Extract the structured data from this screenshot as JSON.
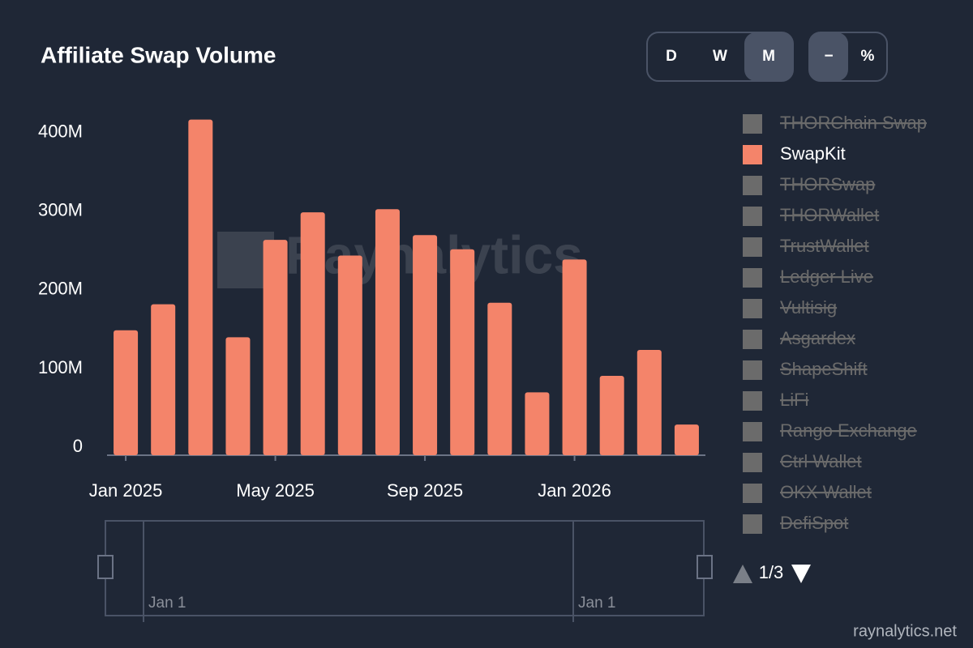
{
  "title": "Affiliate Swap Volume",
  "controls": {
    "periods": [
      "D",
      "W",
      "M"
    ],
    "active_period": 2,
    "modes": [
      "−",
      "%"
    ],
    "active_mode": 0
  },
  "chart_data": {
    "type": "bar",
    "categories": [
      "Jan 2025",
      null,
      null,
      null,
      "May 2025",
      null,
      null,
      null,
      "Sep 2025",
      null,
      null,
      null,
      "Jan 2026",
      null,
      null,
      null
    ],
    "series": [
      {
        "name": "SwapKit",
        "color": "#f4846a",
        "values": [
          159000000,
          192000000,
          427000000,
          150000000,
          274000000,
          309000000,
          254000000,
          313000000,
          280000000,
          262000000,
          194000000,
          80000000,
          249000000,
          101000000,
          134000000,
          39000000
        ]
      }
    ],
    "ylim": [
      0,
      440000000
    ],
    "yticks": [
      {
        "value": 0,
        "label": "0"
      },
      {
        "value": 100000000,
        "label": "100M"
      },
      {
        "value": 200000000,
        "label": "200M"
      },
      {
        "value": 300000000,
        "label": "300M"
      },
      {
        "value": 400000000,
        "label": "400M"
      }
    ],
    "grid": false
  },
  "legend": [
    {
      "name": "THORChain Swap",
      "active": false
    },
    {
      "name": "SwapKit",
      "active": true
    },
    {
      "name": "THORSwap",
      "active": false
    },
    {
      "name": "THORWallet",
      "active": false
    },
    {
      "name": "TrustWallet",
      "active": false
    },
    {
      "name": "Ledger Live",
      "active": false
    },
    {
      "name": "Vultisig",
      "active": false
    },
    {
      "name": "Asgardex",
      "active": false
    },
    {
      "name": "ShapeShift",
      "active": false
    },
    {
      "name": "LiFi",
      "active": false
    },
    {
      "name": "Rango Exchange",
      "active": false
    },
    {
      "name": "Ctrl Wallet",
      "active": false
    },
    {
      "name": "OKX Wallet",
      "active": false
    },
    {
      "name": "DefiSpot",
      "active": false
    }
  ],
  "legend_page": "1/3",
  "slider_labels": [
    "Jan 1",
    "Jan 1"
  ],
  "watermark": "Raynalytics",
  "footer": "raynalytics.net"
}
